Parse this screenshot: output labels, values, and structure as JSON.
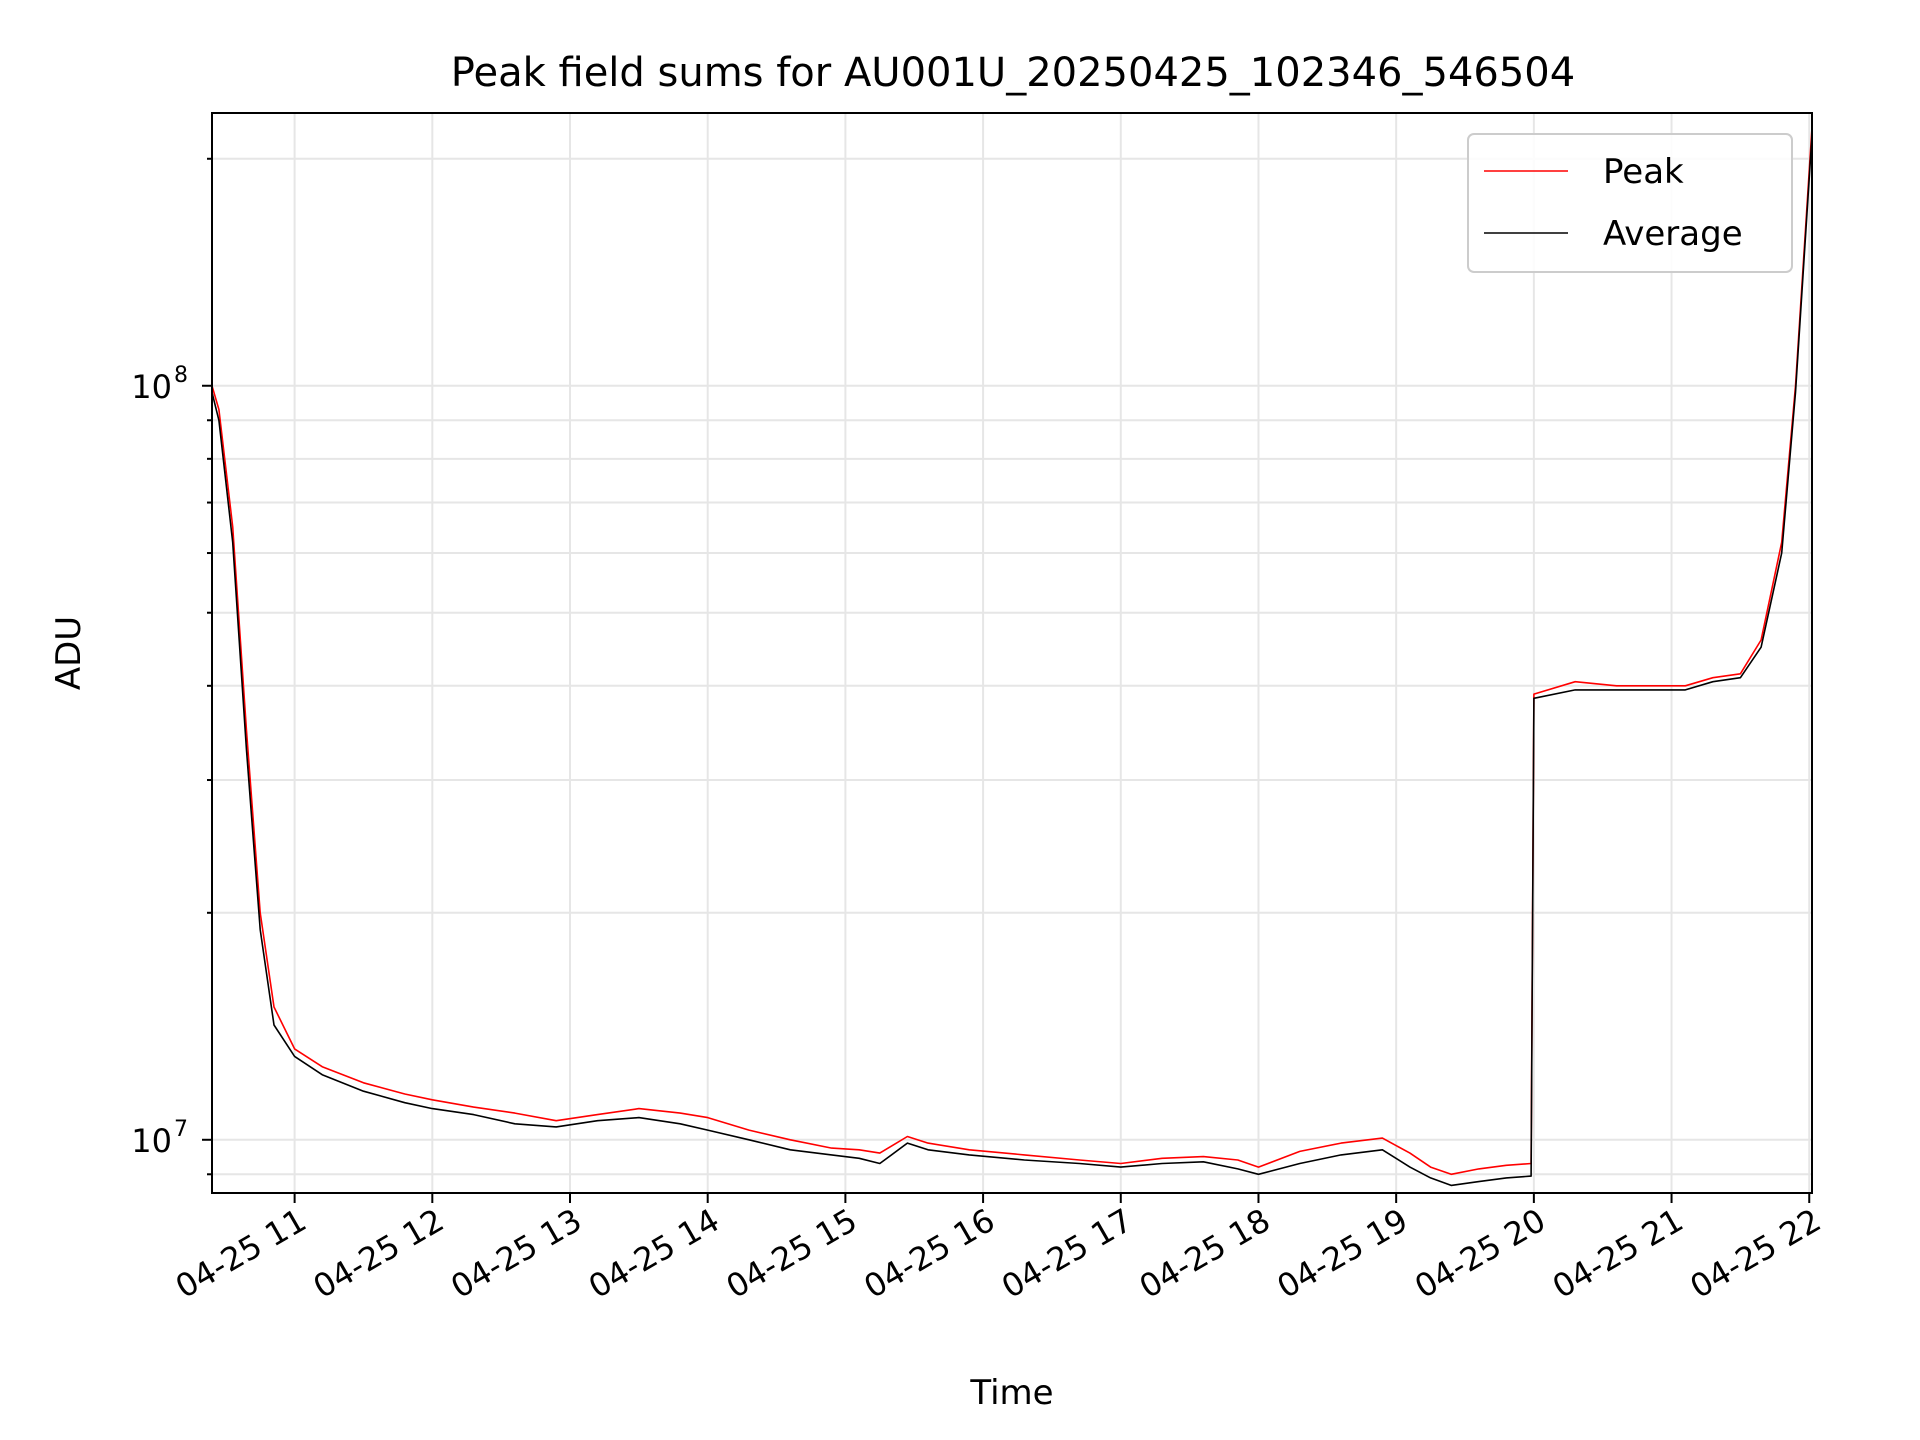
{
  "chart_data": {
    "type": "line",
    "title": "Peak field sums for AU001U_20250425_102346_546504",
    "xlabel": "Time",
    "ylabel": "ADU",
    "x_unit": "hour of 2025-04-25",
    "xlim": [
      10.4,
      22.02
    ],
    "ylim": [
      8500000,
      230000000
    ],
    "y_scale": "log",
    "grid": true,
    "legend_position": "top-right",
    "x_ticks": [
      {
        "value": 11,
        "label": "04-25 11"
      },
      {
        "value": 12,
        "label": "04-25 12"
      },
      {
        "value": 13,
        "label": "04-25 13"
      },
      {
        "value": 14,
        "label": "04-25 14"
      },
      {
        "value": 15,
        "label": "04-25 15"
      },
      {
        "value": 16,
        "label": "04-25 16"
      },
      {
        "value": 17,
        "label": "04-25 17"
      },
      {
        "value": 18,
        "label": "04-25 18"
      },
      {
        "value": 19,
        "label": "04-25 19"
      },
      {
        "value": 20,
        "label": "04-25 20"
      },
      {
        "value": 21,
        "label": "04-25 21"
      },
      {
        "value": 22,
        "label": "04-25 22"
      }
    ],
    "y_ticks": [
      {
        "value": 10000000,
        "base": "10",
        "exp": "7"
      },
      {
        "value": 100000000,
        "base": "10",
        "exp": "8"
      }
    ],
    "series": [
      {
        "name": "Peak",
        "color": "#ff0000",
        "x": [
          10.4,
          10.45,
          10.55,
          10.65,
          10.75,
          10.85,
          11.0,
          11.2,
          11.5,
          11.8,
          12.0,
          12.3,
          12.6,
          12.9,
          13.2,
          13.5,
          13.8,
          14.0,
          14.3,
          14.6,
          14.9,
          15.1,
          15.25,
          15.45,
          15.6,
          15.9,
          16.3,
          16.7,
          17.0,
          17.3,
          17.6,
          17.85,
          18.0,
          18.3,
          18.6,
          18.9,
          19.1,
          19.25,
          19.4,
          19.6,
          19.8,
          19.98,
          20.0,
          20.3,
          20.6,
          20.9,
          21.1,
          21.3,
          21.5,
          21.65,
          21.8,
          21.9,
          22.02
        ],
        "y": [
          100000000,
          93000000,
          65000000,
          35000000,
          20000000,
          15000000,
          13200000,
          12500000,
          11900000,
          11500000,
          11300000,
          11050000,
          10850000,
          10600000,
          10800000,
          11000000,
          10850000,
          10700000,
          10300000,
          10000000,
          9750000,
          9700000,
          9600000,
          10100000,
          9900000,
          9700000,
          9550000,
          9400000,
          9300000,
          9450000,
          9500000,
          9400000,
          9200000,
          9650000,
          9900000,
          10050000,
          9600000,
          9200000,
          9000000,
          9150000,
          9250000,
          9300000,
          39000000,
          40500000,
          40000000,
          40000000,
          40000000,
          41000000,
          41500000,
          46000000,
          62000000,
          100000000,
          220000000
        ]
      },
      {
        "name": "Average",
        "color": "#000000",
        "x": [
          10.4,
          10.45,
          10.55,
          10.65,
          10.75,
          10.85,
          11.0,
          11.2,
          11.5,
          11.8,
          12.0,
          12.3,
          12.6,
          12.9,
          13.2,
          13.5,
          13.8,
          14.0,
          14.3,
          14.6,
          14.9,
          15.1,
          15.25,
          15.45,
          15.6,
          15.9,
          16.3,
          16.7,
          17.0,
          17.3,
          17.6,
          17.85,
          18.0,
          18.3,
          18.6,
          18.9,
          19.1,
          19.25,
          19.4,
          19.6,
          19.8,
          19.98,
          20.0,
          20.3,
          20.6,
          20.9,
          21.1,
          21.3,
          21.5,
          21.65,
          21.8,
          21.9,
          22.02
        ],
        "y": [
          98000000,
          90000000,
          62000000,
          33000000,
          19000000,
          14200000,
          12900000,
          12200000,
          11600000,
          11200000,
          11000000,
          10800000,
          10500000,
          10400000,
          10600000,
          10700000,
          10500000,
          10300000,
          10000000,
          9700000,
          9550000,
          9450000,
          9300000,
          9900000,
          9700000,
          9550000,
          9400000,
          9300000,
          9200000,
          9300000,
          9350000,
          9150000,
          9000000,
          9300000,
          9550000,
          9700000,
          9200000,
          8900000,
          8700000,
          8800000,
          8900000,
          8950000,
          38500000,
          39500000,
          39500000,
          39500000,
          39500000,
          40500000,
          41000000,
          45000000,
          60000000,
          98000000,
          215000000
        ]
      }
    ]
  }
}
